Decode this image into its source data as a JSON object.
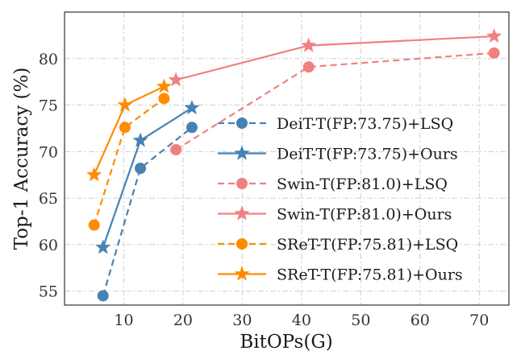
{
  "chart_data": {
    "type": "line",
    "title": "",
    "xlabel": "BitOPs(G)",
    "ylabel": "Top-1 Accuracy (%)",
    "xlim": [
      0,
      75
    ],
    "ylim": [
      53.5,
      85
    ],
    "xticks": [
      10,
      20,
      30,
      40,
      50,
      60,
      70
    ],
    "yticks": [
      55,
      60,
      65,
      70,
      75,
      80
    ],
    "grid": true,
    "legend_position": "center-right",
    "series": [
      {
        "name": "DeiT-T(FP:73.75)+LSQ",
        "color": "#4682b4",
        "linestyle": "dashed",
        "marker": "circle",
        "x": [
          6.5,
          12.8,
          21.5
        ],
        "y": [
          54.5,
          68.2,
          72.6
        ]
      },
      {
        "name": "DeiT-T(FP:73.75)+Ours",
        "color": "#4682b4",
        "linestyle": "solid",
        "marker": "star",
        "x": [
          6.5,
          12.8,
          21.5
        ],
        "y": [
          59.7,
          71.2,
          74.7
        ]
      },
      {
        "name": "Swin-T(FP:81.0)+LSQ",
        "color": "#f08080",
        "linestyle": "dashed",
        "marker": "circle",
        "x": [
          18.8,
          41.2,
          72.5
        ],
        "y": [
          70.2,
          79.1,
          80.6
        ]
      },
      {
        "name": "Swin-T(FP:81.0)+Ours",
        "color": "#f08080",
        "linestyle": "solid",
        "marker": "star",
        "x": [
          18.8,
          41.2,
          72.5
        ],
        "y": [
          77.7,
          81.4,
          82.4
        ]
      },
      {
        "name": "SReT-T(FP:75.81)+LSQ",
        "color": "#ff8c00",
        "linestyle": "dashed",
        "marker": "circle",
        "x": [
          5.0,
          10.2,
          16.8
        ],
        "y": [
          62.1,
          72.6,
          75.7
        ]
      },
      {
        "name": "SReT-T(FP:75.81)+Ours",
        "color": "#ff8c00",
        "linestyle": "solid",
        "marker": "star",
        "x": [
          5.0,
          10.2,
          16.8
        ],
        "y": [
          67.5,
          75.0,
          77.0
        ]
      }
    ]
  }
}
